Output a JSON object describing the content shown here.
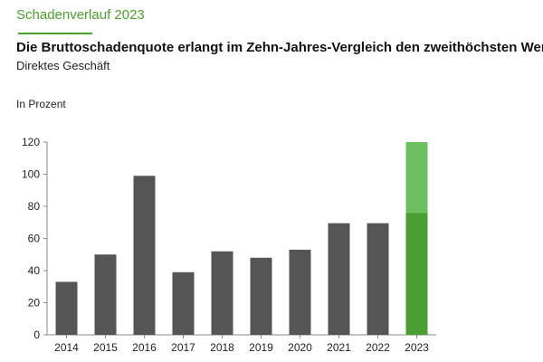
{
  "header": {
    "kicker": "Schadenverlauf 2023",
    "title": "Die Bruttoschadenquote erlangt im Zehn-Jahres-Vergleich den zweithöchsten Wert",
    "subtitle": "Direktes Geschäft"
  },
  "chart_data": {
    "type": "bar",
    "ylabel": "In Prozent",
    "categories": [
      "2014",
      "2015",
      "2016",
      "2017",
      "2018",
      "2019",
      "2020",
      "2021",
      "2022",
      "2023"
    ],
    "series": [
      {
        "values": [
          33,
          50,
          99,
          39,
          52,
          48,
          53,
          69.5,
          69.5,
          76
        ]
      },
      {
        "values": [
          0,
          0,
          0,
          0,
          0,
          0,
          0,
          0,
          0,
          44
        ]
      }
    ],
    "stacked": true,
    "ylim": [
      0,
      120
    ],
    "yticks": [
      0,
      20,
      40,
      60,
      80,
      100,
      120
    ],
    "grid": false,
    "colors": {
      "bar": "#555555",
      "highlight_base": "#4a9e32",
      "highlight_top": "#6cc05f",
      "axis": "#888888",
      "kicker": "#4aa02c"
    }
  }
}
